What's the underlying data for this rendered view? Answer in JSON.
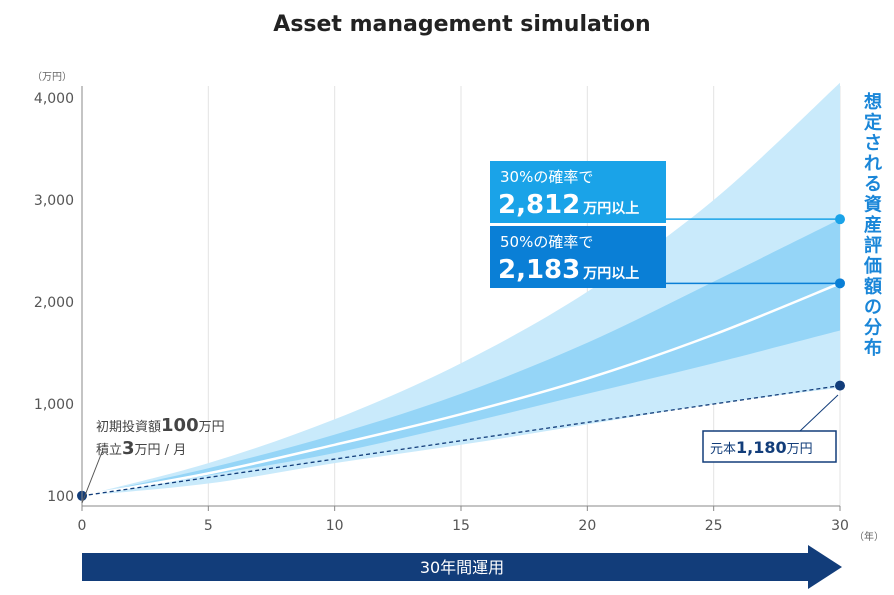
{
  "chart_data": {
    "type": "area",
    "title": "Asset management simulation",
    "y_unit": "（万円）",
    "x_unit": "（年）",
    "xlim": [
      0,
      30
    ],
    "ylim": [
      0,
      4000
    ],
    "y_ticks": [
      {
        "value": 100,
        "label": "100"
      },
      {
        "value": 1000,
        "label": "1,000"
      },
      {
        "value": 2000,
        "label": "2,000"
      },
      {
        "value": 3000,
        "label": "3,000"
      },
      {
        "value": 4000,
        "label": "4,000"
      }
    ],
    "x_ticks": [
      {
        "value": 0,
        "label": "0"
      },
      {
        "value": 5,
        "label": "5"
      },
      {
        "value": 10,
        "label": "10"
      },
      {
        "value": 15,
        "label": "15"
      },
      {
        "value": 20,
        "label": "20"
      },
      {
        "value": 25,
        "label": "25"
      },
      {
        "value": 30,
        "label": "30"
      }
    ],
    "x": [
      0,
      5,
      10,
      15,
      20,
      25,
      30
    ],
    "bands": {
      "outer": {
        "lower": [
          100,
          220,
          420,
          600,
          800,
          1000,
          1160
        ],
        "upper": [
          100,
          420,
          850,
          1400,
          2100,
          3000,
          4150
        ],
        "color": "#c9eafb"
      },
      "inner": {
        "lower": [
          100,
          300,
          520,
          800,
          1100,
          1400,
          1720
        ],
        "upper": [
          100,
          370,
          700,
          1100,
          1600,
          2200,
          2812
        ],
        "color": "#95d5f7"
      }
    },
    "median": {
      "values": [
        100,
        320,
        600,
        900,
        1250,
        1680,
        2183
      ],
      "color": "#ffffff"
    },
    "principal": {
      "values": [
        100,
        280,
        460,
        640,
        820,
        1000,
        1180
      ],
      "color": "#123d7a"
    },
    "initial_note": {
      "line1_prefix": "初期投資額",
      "line1_value": "100",
      "line1_unit": "万円",
      "line2_prefix": "積立",
      "line2_value": "3",
      "line2_unit": "万円 / 月"
    },
    "callout_30": {
      "label": "30%の確率で",
      "value": "2,812",
      "unit": "万円以上",
      "y": 2812,
      "color": "#1aa3e8"
    },
    "callout_50": {
      "label": "50%の確率で",
      "value": "2,183",
      "unit": "万円以上",
      "y": 2183,
      "color": "#0a7fd6"
    },
    "principal_label": {
      "prefix": "元本",
      "value": "1,180",
      "unit": "万円"
    },
    "vertical_label": "想定される資産評価額の分布",
    "period_arrow": "30年間運用"
  }
}
